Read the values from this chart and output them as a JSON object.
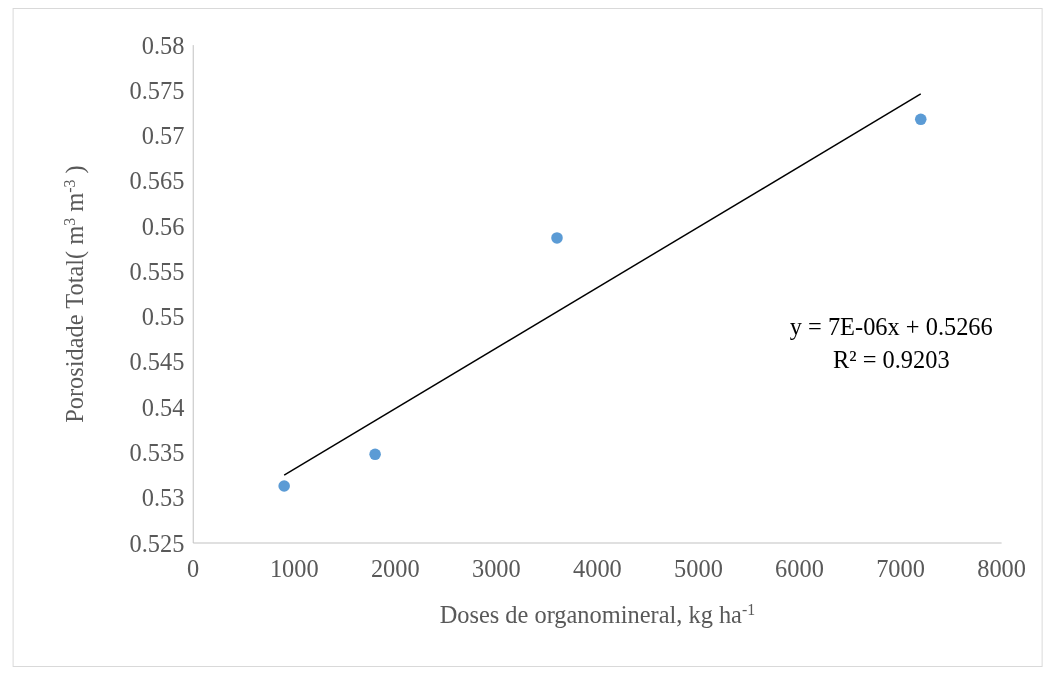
{
  "chart_data": {
    "type": "scatter",
    "xlabel": "Doses de organomineral, kg ha$^{-1}$",
    "ylabel": "Porosidade Total( m$^{3}$ m$^{-3}$ )",
    "xlim": [
      0,
      8000
    ],
    "xticks": [
      0,
      1000,
      2000,
      3000,
      4000,
      5000,
      6000,
      7000,
      8000
    ],
    "ylim": [
      0.525,
      0.58
    ],
    "yticks": [
      0.525,
      0.53,
      0.535,
      0.54,
      0.545,
      0.55,
      0.555,
      0.56,
      0.565,
      0.57,
      0.575,
      0.58
    ],
    "grid": false,
    "series": [
      {
        "marker": "circle",
        "color": "#5b9bd5",
        "x": [
          900,
          1800,
          3600,
          7200
        ],
        "values": [
          0.5313,
          0.5348,
          0.5587,
          0.5718
        ]
      },
      {
        "type": "line",
        "color": "#000000",
        "x": [
          900,
          7200
        ],
        "values": [
          0.5325,
          0.5746
        ]
      }
    ],
    "annotations": [
      "y = 7E-06x + 0.5266",
      "R² = 0.9203"
    ]
  }
}
